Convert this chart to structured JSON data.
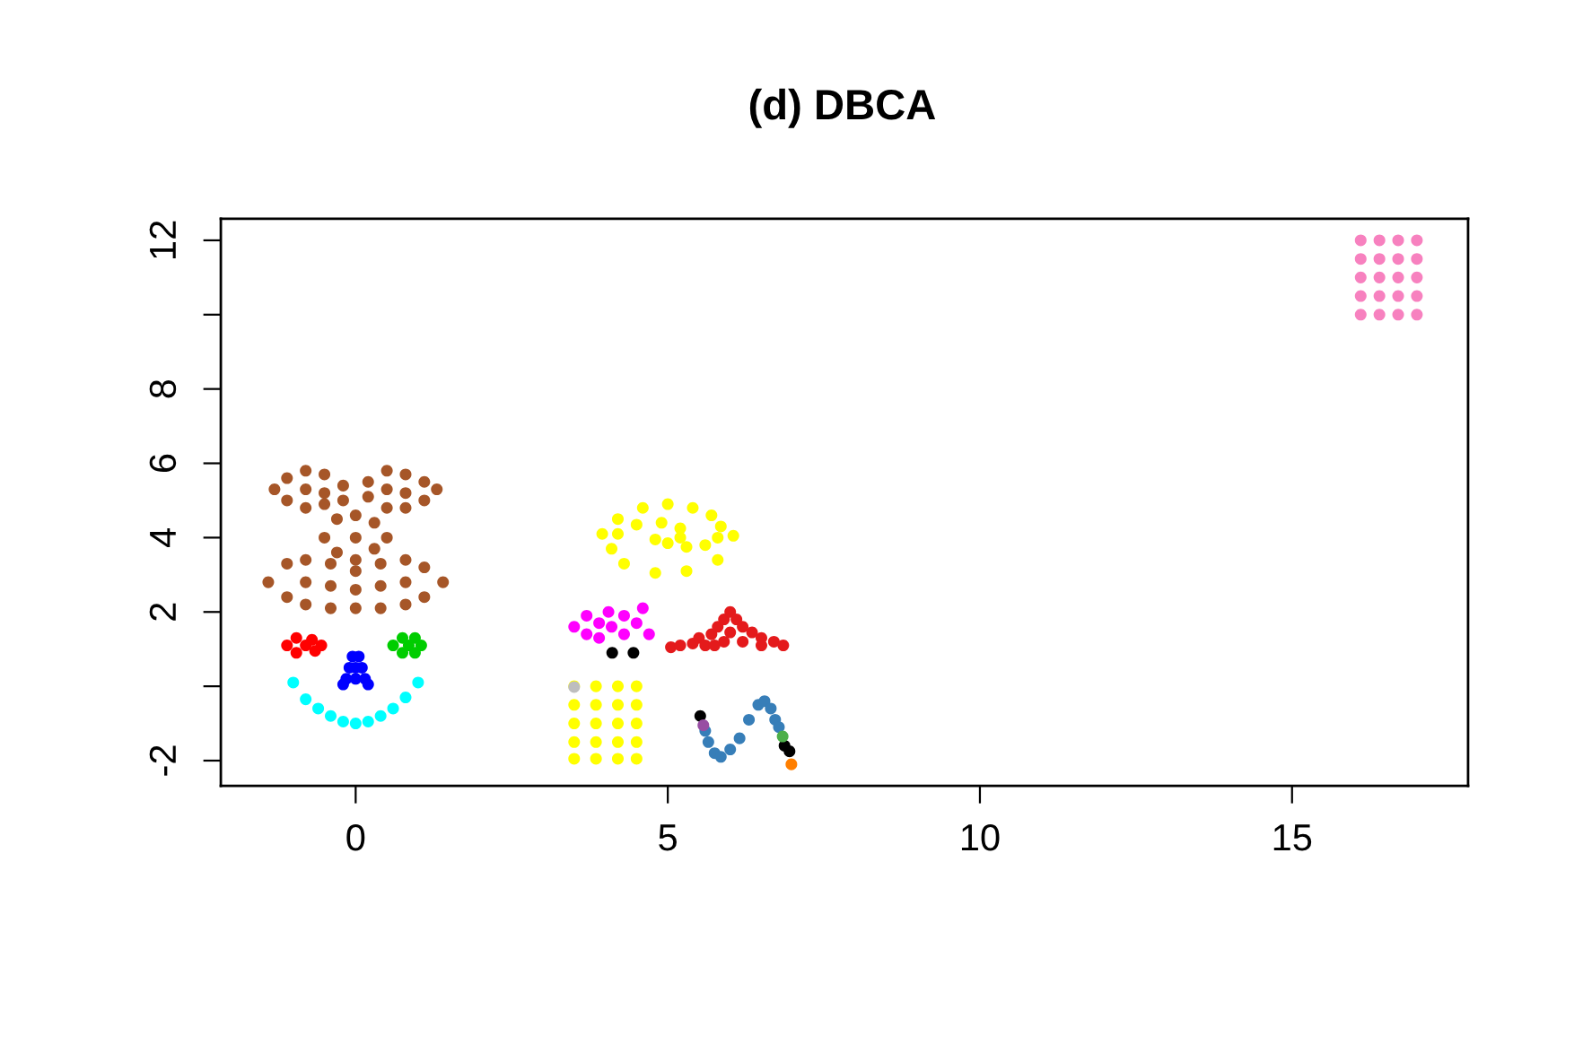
{
  "chart_data": {
    "type": "scatter",
    "title": "(d) DBCA",
    "marker": "circle",
    "grid": false,
    "xlim": [
      -2.16,
      17.82
    ],
    "ylim": [
      -2.68,
      12.58
    ],
    "xticks": [
      0,
      5,
      10,
      15
    ],
    "yticks": [
      -2,
      {
        "value": 0,
        "label": null
      },
      2,
      4,
      6,
      8,
      {
        "value": 10,
        "label": null
      },
      12
    ],
    "series": [
      {
        "color": "#a65628",
        "x": [
          -1.3,
          -1.1,
          -1.1,
          -0.8,
          -0.8,
          -0.8,
          -0.5,
          -0.5,
          -0.5,
          -0.2,
          -0.2,
          0.2,
          0.2,
          0.5,
          0.5,
          0.5,
          0.8,
          0.8,
          0.8,
          1.1,
          1.1,
          1.3,
          -0.5,
          -0.3,
          -0.3,
          0,
          0,
          0,
          0.3,
          0.3,
          0.5,
          -1.4,
          -1.1,
          -1.1,
          -0.8,
          -0.8,
          -0.8,
          -0.4,
          -0.4,
          -0.4,
          0,
          0,
          0,
          0.4,
          0.4,
          0.4,
          0.8,
          0.8,
          0.8,
          1.1,
          1.1,
          1.4
        ],
        "values": [
          5.3,
          5.6,
          5.0,
          5.8,
          5.3,
          4.8,
          5.7,
          5.2,
          4.9,
          5.4,
          5.0,
          5.5,
          5.1,
          5.8,
          5.3,
          4.8,
          5.7,
          5.2,
          4.8,
          5.5,
          5.0,
          5.3,
          4.0,
          4.5,
          3.6,
          4.6,
          4.0,
          3.4,
          4.4,
          3.7,
          4.0,
          2.8,
          3.3,
          2.4,
          3.4,
          2.8,
          2.2,
          3.3,
          2.7,
          2.1,
          3.1,
          2.6,
          2.1,
          3.3,
          2.7,
          2.1,
          3.4,
          2.8,
          2.2,
          3.2,
          2.4,
          2.8
        ]
      },
      {
        "color": "#ff0000",
        "x": [
          -1.1,
          -0.95,
          -0.95,
          -0.8,
          -0.7,
          -0.65,
          -0.55
        ],
        "values": [
          1.1,
          1.3,
          0.9,
          1.1,
          1.25,
          0.95,
          1.1
        ]
      },
      {
        "color": "#00cd00",
        "x": [
          0.6,
          0.75,
          0.75,
          0.85,
          0.95,
          0.95,
          1.05
        ],
        "values": [
          1.1,
          1.3,
          0.9,
          1.1,
          1.3,
          0.9,
          1.1
        ]
      },
      {
        "color": "#0000ff",
        "x": [
          -0.05,
          0.05,
          -0.1,
          0.1,
          0,
          -0.15,
          0,
          0.15,
          -0.2,
          0.2
        ],
        "values": [
          0.8,
          0.8,
          0.5,
          0.5,
          0.5,
          0.2,
          0.2,
          0.2,
          0.05,
          0.05
        ]
      },
      {
        "color": "#00ffff",
        "x": [
          -1.0,
          -0.8,
          -0.6,
          -0.4,
          -0.2,
          0,
          0.2,
          0.4,
          0.6,
          0.8,
          1.0
        ],
        "values": [
          0.1,
          -0.35,
          -0.6,
          -0.8,
          -0.95,
          -1.0,
          -0.95,
          -0.8,
          -0.6,
          -0.3,
          0.1
        ]
      },
      {
        "color": "#ffff00",
        "x": [
          3.95,
          4.2,
          4.6,
          5.0,
          5.4,
          5.7,
          5.85,
          5.8,
          5.6,
          5.3,
          6.05,
          5.8,
          5.3,
          4.8,
          4.3,
          4.1,
          4.2,
          4.5,
          4.9,
          5.2,
          5.2,
          5.0,
          4.8,
          3.5,
          3.85,
          4.2,
          4.5,
          3.5,
          3.85,
          4.2,
          4.5,
          3.5,
          3.85,
          4.2,
          4.5,
          3.5,
          3.85,
          4.2,
          4.5,
          3.5,
          3.85,
          4.2,
          4.5
        ],
        "values": [
          4.1,
          4.5,
          4.8,
          4.9,
          4.8,
          4.6,
          4.3,
          4.0,
          3.8,
          3.75,
          4.05,
          3.4,
          3.1,
          3.05,
          3.3,
          3.7,
          4.1,
          4.35,
          4.4,
          4.25,
          4.0,
          3.85,
          3.95,
          0.0,
          0.0,
          0.0,
          0.0,
          -0.5,
          -0.5,
          -0.5,
          -0.5,
          -1.0,
          -1.0,
          -1.0,
          -1.0,
          -1.5,
          -1.5,
          -1.5,
          -1.5,
          -1.95,
          -1.95,
          -1.95,
          -1.95
        ]
      },
      {
        "color": "#ff00ff",
        "x": [
          3.5,
          3.7,
          3.7,
          3.9,
          3.9,
          4.05,
          4.1,
          4.3,
          4.3,
          4.5,
          4.7,
          4.6
        ],
        "values": [
          1.6,
          1.9,
          1.4,
          1.7,
          1.3,
          2.0,
          1.6,
          1.9,
          1.4,
          1.7,
          1.4,
          2.1
        ]
      },
      {
        "color": "#e41a1c",
        "x": [
          5.05,
          5.2,
          5.4,
          5.5,
          5.7,
          5.8,
          5.9,
          6.0,
          6.1,
          6.2,
          6.35,
          6.5,
          6.7,
          6.85,
          5.6,
          5.9,
          6.2,
          6.5,
          6.0,
          5.75
        ],
        "values": [
          1.05,
          1.1,
          1.15,
          1.3,
          1.4,
          1.6,
          1.8,
          2.0,
          1.8,
          1.6,
          1.45,
          1.3,
          1.2,
          1.1,
          1.1,
          1.2,
          1.2,
          1.1,
          1.45,
          1.1
        ]
      },
      {
        "color": "#377eb8",
        "x": [
          5.6,
          5.65,
          5.75,
          5.85,
          6.0,
          6.15,
          6.3,
          6.45,
          6.55,
          6.65,
          6.72,
          6.78
        ],
        "values": [
          -1.2,
          -1.5,
          -1.8,
          -1.9,
          -1.7,
          -1.4,
          -0.9,
          -0.5,
          -0.4,
          -0.6,
          -0.9,
          -1.1
        ]
      },
      {
        "color": "#000000",
        "x": [
          4.11,
          4.45,
          5.52,
          6.87,
          6.95
        ],
        "values": [
          0.9,
          0.9,
          -0.8,
          -1.6,
          -1.75
        ]
      },
      {
        "color": "#bebebe",
        "x": [
          3.5
        ],
        "values": [
          -0.02
        ]
      },
      {
        "color": "#984ea3",
        "x": [
          5.57
        ],
        "values": [
          -1.05
        ]
      },
      {
        "color": "#4daf4a",
        "x": [
          6.84
        ],
        "values": [
          -1.35
        ]
      },
      {
        "color": "#ff7f00",
        "x": [
          6.98
        ],
        "values": [
          -2.1
        ]
      },
      {
        "color": "#f781bf",
        "x": [
          16.1,
          16.4,
          16.7,
          17.0,
          16.1,
          16.4,
          16.7,
          17.0,
          16.1,
          16.4,
          16.7,
          17.0,
          16.1,
          16.4,
          16.7,
          17.0,
          16.1,
          16.4,
          16.7,
          17.0
        ],
        "values": [
          10.0,
          10.0,
          10.0,
          10.0,
          10.5,
          10.5,
          10.5,
          10.5,
          11.0,
          11.0,
          11.0,
          11.0,
          11.5,
          11.5,
          11.5,
          11.5,
          12.0,
          12.0,
          12.0,
          12.0
        ]
      }
    ]
  }
}
